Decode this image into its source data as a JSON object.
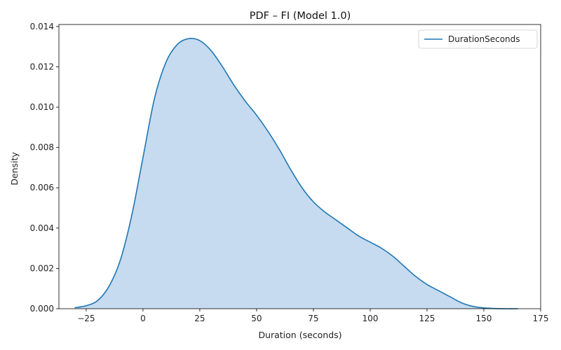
{
  "chart_data": {
    "type": "area",
    "title": "PDF – FI (Model 1.0)",
    "xlabel": "Duration (seconds)",
    "ylabel": "Density",
    "xlim": [
      -37,
      175
    ],
    "ylim": [
      0,
      0.0141
    ],
    "xticks": [
      -25,
      0,
      25,
      50,
      75,
      100,
      125,
      150,
      175
    ],
    "xtick_labels": [
      "−25",
      "0",
      "25",
      "50",
      "75",
      "100",
      "125",
      "150",
      "175"
    ],
    "yticks": [
      0,
      0.002,
      0.004,
      0.006,
      0.008,
      0.01,
      0.012,
      0.014
    ],
    "ytick_labels": [
      "0.000",
      "0.002",
      "0.004",
      "0.006",
      "0.008",
      "0.010",
      "0.012",
      "0.014"
    ],
    "grid": false,
    "legend_position": "top-right",
    "series": [
      {
        "name": "DurationSeconds",
        "color": "#1f77b4",
        "fill_color": "#c6dbef",
        "x": [
          -30,
          -25,
          -20,
          -15,
          -10,
          -5,
          0,
          5,
          10,
          15,
          20,
          25,
          30,
          35,
          40,
          45,
          50,
          55,
          60,
          65,
          70,
          75,
          80,
          85,
          90,
          95,
          100,
          105,
          110,
          115,
          120,
          125,
          130,
          135,
          140,
          145,
          150,
          155,
          160,
          165
        ],
        "y": [
          5e-05,
          0.00015,
          0.0004,
          0.0011,
          0.0024,
          0.0046,
          0.0075,
          0.0104,
          0.0122,
          0.0131,
          0.0134,
          0.0133,
          0.0128,
          0.012,
          0.0111,
          0.0103,
          0.0096,
          0.0088,
          0.0079,
          0.0069,
          0.006,
          0.0053,
          0.0048,
          0.0044,
          0.004,
          0.0036,
          0.0033,
          0.003,
          0.0026,
          0.0021,
          0.0016,
          0.0012,
          0.0009,
          0.0006,
          0.0003,
          0.00012,
          4e-05,
          1e-05,
          0.0,
          0.0
        ]
      }
    ]
  }
}
